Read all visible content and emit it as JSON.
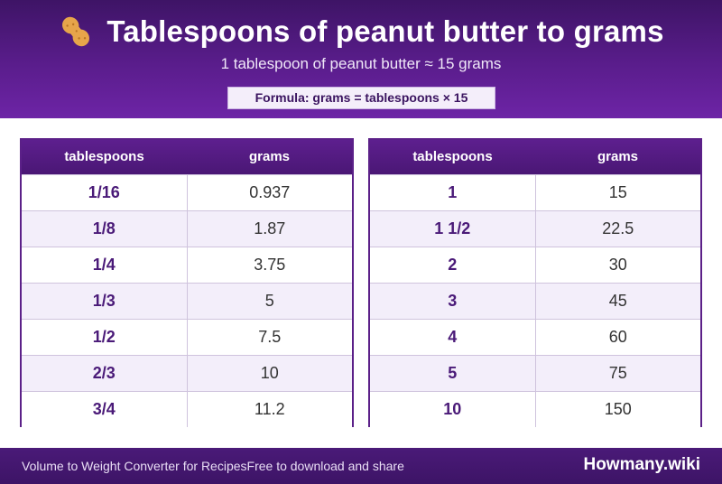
{
  "header": {
    "title": "Tablespoons of peanut butter to grams",
    "subtitle": "1 tablespoon of peanut butter ≈ 15 grams",
    "formula": "Formula: grams = tablespoons × 15",
    "icon": "peanut-icon"
  },
  "tables": {
    "left": {
      "headers": [
        "tablespoons",
        "grams"
      ],
      "rows": [
        [
          "1/16",
          "0.937"
        ],
        [
          "1/8",
          "1.87"
        ],
        [
          "1/4",
          "3.75"
        ],
        [
          "1/3",
          "5"
        ],
        [
          "1/2",
          "7.5"
        ],
        [
          "2/3",
          "10"
        ],
        [
          "3/4",
          "11.2"
        ]
      ]
    },
    "right": {
      "headers": [
        "tablespoons",
        "grams"
      ],
      "rows": [
        [
          "1",
          "15"
        ],
        [
          "1 1/2",
          "22.5"
        ],
        [
          "2",
          "30"
        ],
        [
          "3",
          "45"
        ],
        [
          "4",
          "60"
        ],
        [
          "5",
          "75"
        ],
        [
          "10",
          "150"
        ]
      ]
    }
  },
  "footer": {
    "text": "Volume to Weight Converter for RecipesFree to download and share",
    "brand": "Howmany.wiki"
  },
  "colors": {
    "header_purple": "#5a1d8c",
    "accent_text": "#4a1a78",
    "stripe": "#f3eefa"
  }
}
